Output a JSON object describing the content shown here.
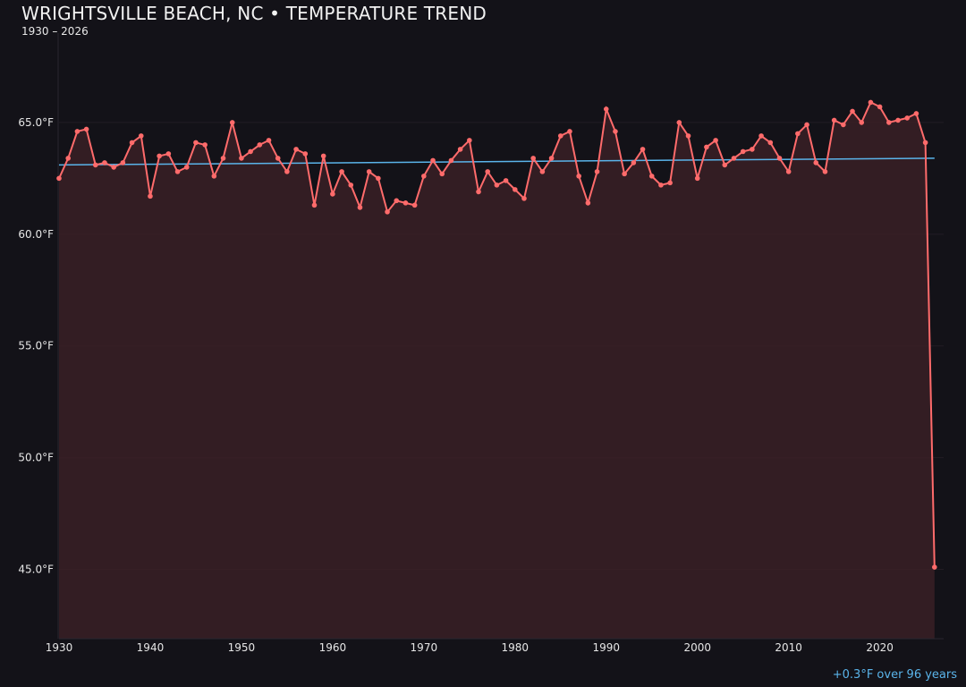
{
  "chart_data": {
    "type": "area",
    "title": "WRIGHTSVILLE BEACH, NC • TEMPERATURE TREND",
    "subtitle": "1930 – 2026",
    "annotation": "+0.3°F over 96 years",
    "xlabel": "",
    "ylabel": "",
    "xlim": [
      1930,
      2027
    ],
    "ylim": [
      41.9,
      69.0
    ],
    "x_ticks": [
      "1930",
      "1940",
      "1950",
      "1960",
      "1970",
      "1980",
      "1990",
      "2000",
      "2010",
      "2020"
    ],
    "y_ticks": [
      {
        "value": 45,
        "label": "45.0°F"
      },
      {
        "value": 50,
        "label": "50.0°F"
      },
      {
        "value": 55,
        "label": "55.0°F"
      },
      {
        "value": 60,
        "label": "60.0°F"
      },
      {
        "value": 65,
        "label": "65.0°F"
      }
    ],
    "grid": true,
    "colors": {
      "line": "#ff6b6b",
      "fill": "#3a2026",
      "trend": "#5ab4ea",
      "background": "#131218"
    },
    "series": [
      {
        "x": [
          1930,
          1931,
          1932,
          1933,
          1934,
          1935,
          1936,
          1937,
          1938,
          1939,
          1940,
          1941,
          1942,
          1943,
          1944,
          1945,
          1946,
          1947,
          1948,
          1949,
          1950,
          1951,
          1952,
          1953,
          1954,
          1955,
          1956,
          1957,
          1958,
          1959,
          1960,
          1961,
          1962,
          1963,
          1964,
          1965,
          1966,
          1967,
          1968,
          1969,
          1970,
          1971,
          1972,
          1973,
          1974,
          1975,
          1976,
          1977,
          1978,
          1979,
          1980,
          1981,
          1982,
          1983,
          1984,
          1985,
          1986,
          1987,
          1988,
          1989,
          1990,
          1991,
          1992,
          1993,
          1994,
          1995,
          1996,
          1997,
          1998,
          1999,
          2000,
          2001,
          2002,
          2003,
          2004,
          2005,
          2006,
          2007,
          2008,
          2009,
          2010,
          2011,
          2012,
          2013,
          2014,
          2015,
          2016,
          2017,
          2018,
          2019,
          2020,
          2021,
          2022,
          2023,
          2024,
          2025,
          2026
        ],
        "y": [
          62.5,
          63.4,
          64.6,
          64.7,
          63.1,
          63.2,
          63.0,
          63.2,
          64.1,
          64.4,
          61.7,
          63.5,
          63.6,
          62.8,
          63.0,
          64.1,
          64.0,
          62.6,
          63.4,
          65.0,
          63.4,
          63.7,
          64.0,
          64.2,
          63.4,
          62.8,
          63.8,
          63.6,
          61.3,
          63.5,
          61.8,
          62.8,
          62.2,
          61.2,
          62.8,
          62.5,
          61.0,
          61.5,
          61.4,
          61.3,
          62.6,
          63.3,
          62.7,
          63.3,
          63.8,
          64.2,
          61.9,
          62.8,
          62.2,
          62.4,
          62.0,
          61.6,
          63.4,
          62.8,
          63.4,
          64.4,
          64.6,
          62.6,
          61.4,
          62.8,
          65.6,
          64.6,
          62.7,
          63.2,
          63.8,
          62.6,
          62.2,
          62.3,
          65.0,
          64.4,
          62.5,
          63.9,
          64.2,
          63.1,
          63.4,
          63.7,
          63.8,
          64.4,
          64.1,
          63.4,
          62.8,
          64.5,
          64.9,
          63.2,
          62.8,
          65.1,
          64.9,
          65.5,
          65.0,
          65.9,
          65.7,
          65.0,
          65.1,
          65.2,
          65.4,
          64.1,
          45.1
        ]
      }
    ],
    "trend": {
      "x": [
        1930,
        2026
      ],
      "y": [
        63.1,
        63.4
      ]
    }
  }
}
